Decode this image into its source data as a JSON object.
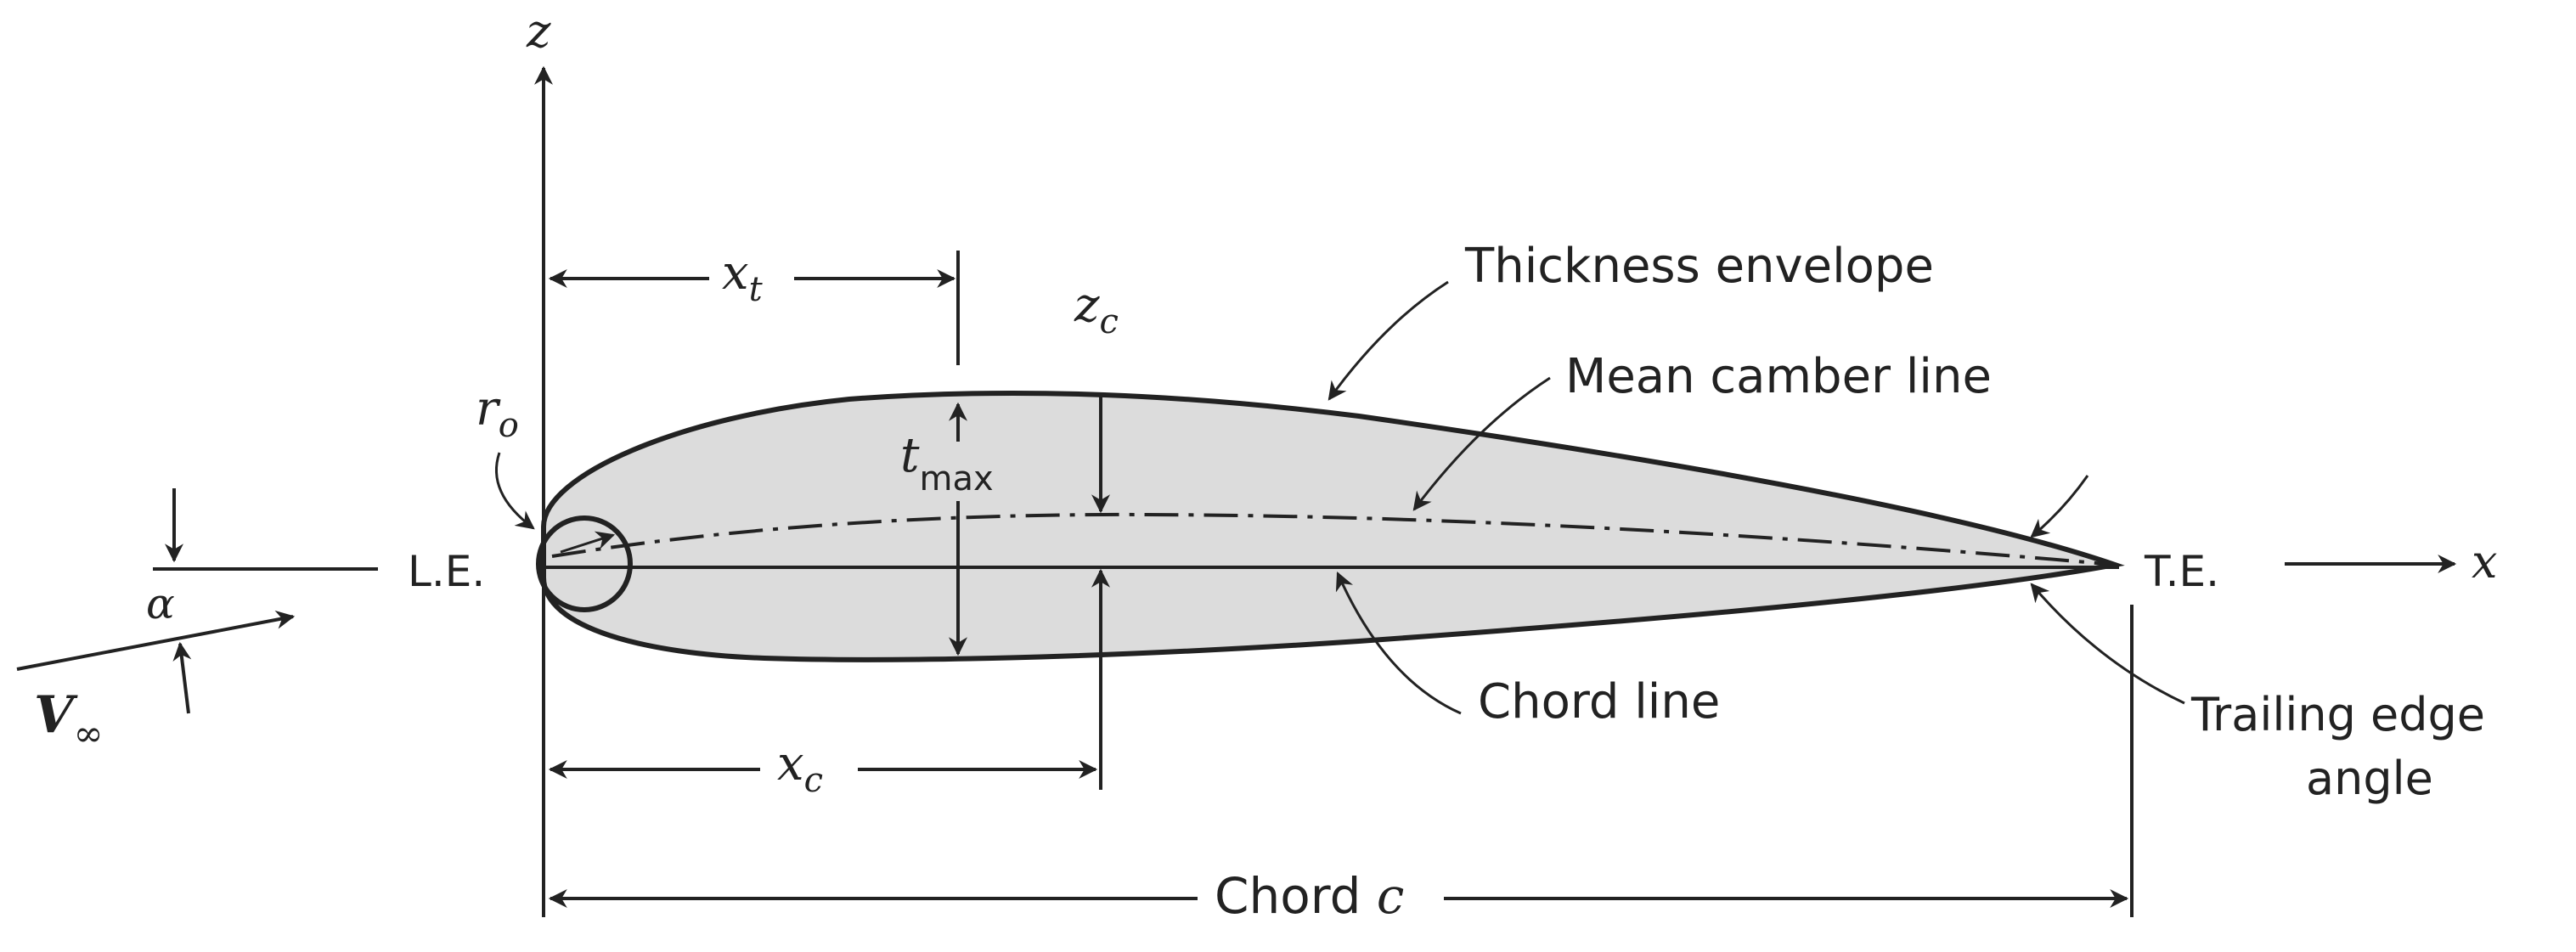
{
  "labels": {
    "z_axis": "z",
    "x_axis": "x",
    "x_t": "x",
    "x_t_sub": "t",
    "z_c": "z",
    "z_c_sub": "c",
    "x_c": "x",
    "x_c_sub": "c",
    "r_o": "r",
    "r_o_sub": "o",
    "t_max": "t",
    "t_max_sub": "max",
    "alpha": "α",
    "v_inf": "V",
    "v_inf_sub": "∞",
    "leading_edge": "L.E.",
    "trailing_edge": "T.E.",
    "thickness_envelope": "Thickness envelope",
    "mean_camber_line": "Mean camber line",
    "chord_line": "Chord line",
    "trailing_edge_angle_1": "Trailing edge",
    "trailing_edge_angle_2": "angle",
    "chord_word": "Chord ",
    "chord_symbol": "c"
  },
  "colors": {
    "line": "#222222",
    "airfoil_fill": "#dcdcdc",
    "background": "#ffffff"
  }
}
